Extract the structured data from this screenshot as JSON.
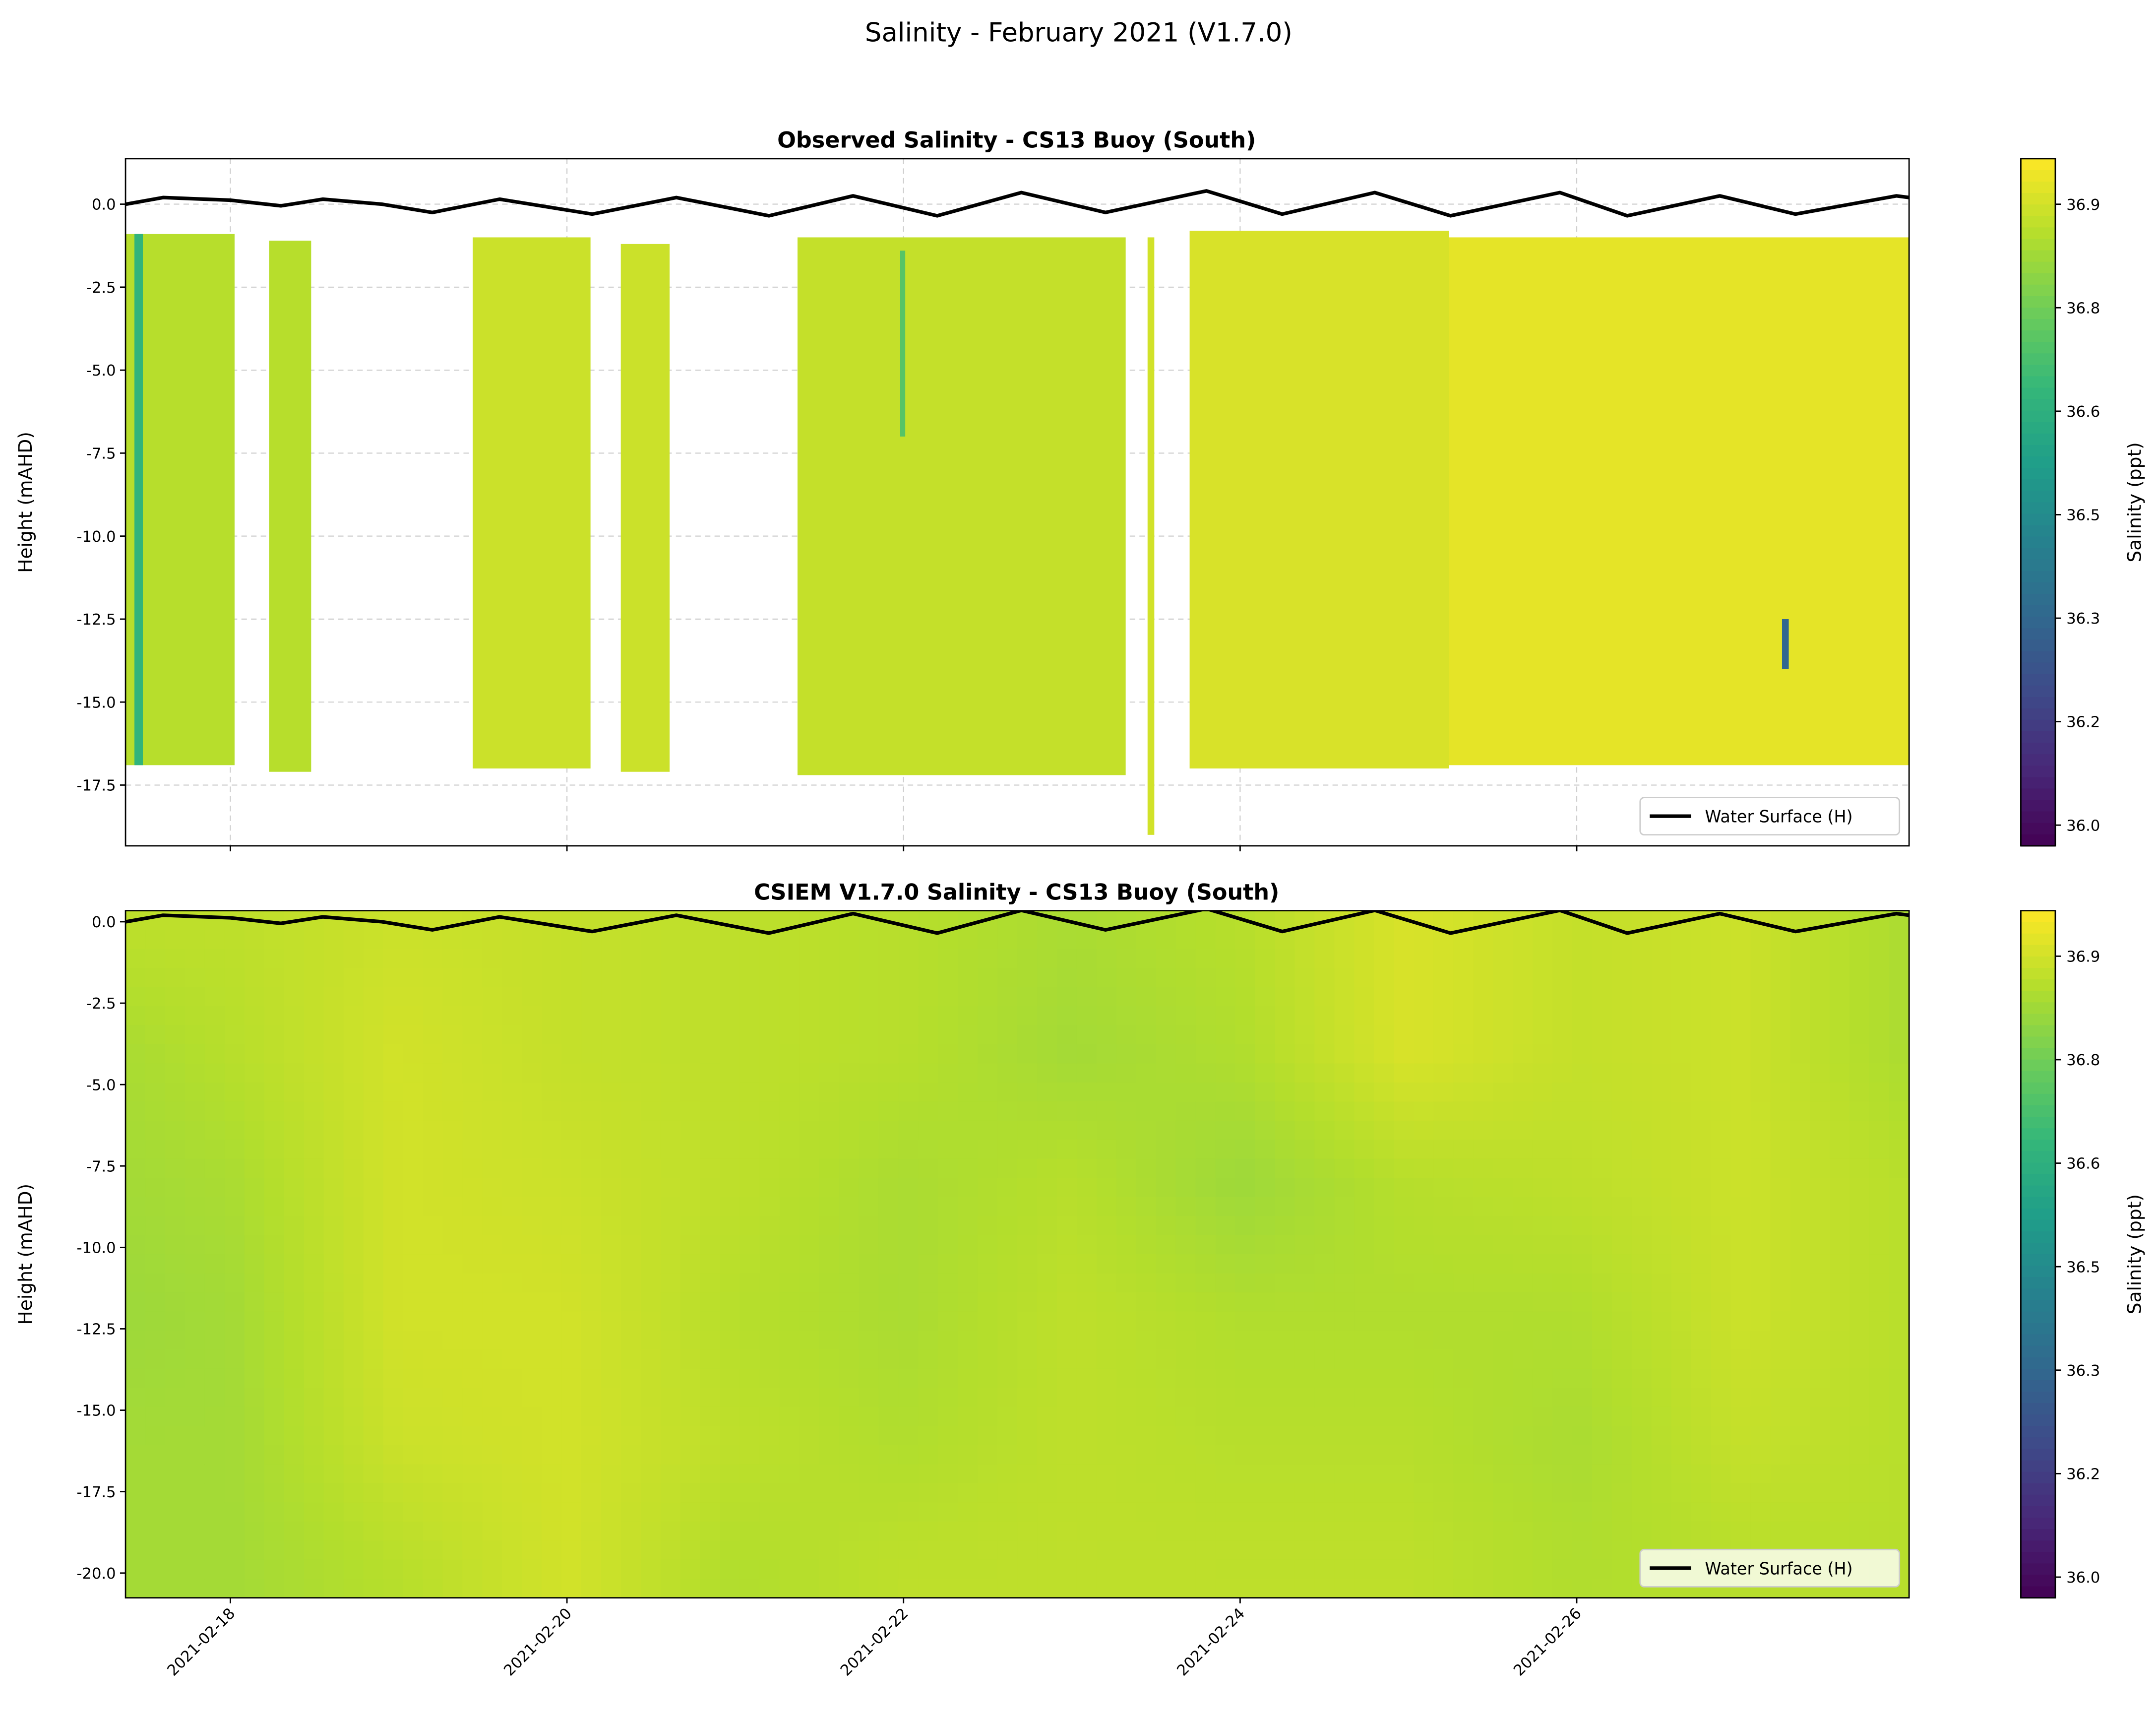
{
  "title": "Salinity - February 2021 (V1.7.0)",
  "colors": {
    "line": "#000000",
    "colormap": "viridis"
  },
  "chart_data": [
    {
      "type": "heatmap",
      "title": "Observed Salinity - CS13 Buoy (South)",
      "xlabel": "",
      "ylabel": "Height (mAHD)",
      "xlim_day_of_feb_2021": [
        17.377,
        27.975
      ],
      "ylim": [
        -19.33,
        1.37
      ],
      "yticks": [
        0.0,
        -2.5,
        -5.0,
        -7.5,
        -10.0,
        -12.5,
        -15.0,
        -17.5
      ],
      "ytick_labels": [
        "0.0",
        "-2.5",
        "-5.0",
        "-7.5",
        "-10.0",
        "-12.5",
        "-15.0",
        "-17.5"
      ],
      "xticks_day": [
        18,
        20,
        22,
        24,
        26
      ],
      "grid": true,
      "legend": {
        "label": "Water Surface (H)",
        "placement": "lower-right"
      },
      "colorbar": {
        "label": "Salinity (ppt)",
        "vmin": 35.97,
        "vmax": 36.966,
        "ticks": [
          36.0,
          36.15,
          36.3,
          36.45,
          36.6,
          36.75,
          36.9
        ],
        "tick_labels": [
          "36.0",
          "36.2",
          "36.3",
          "36.5",
          "36.6",
          "36.8",
          "36.9"
        ]
      },
      "observed_blocks": [
        {
          "start": 17.377,
          "end": 18.025,
          "top": -0.9,
          "bottom": -16.9,
          "value": 36.86
        },
        {
          "start": 17.43,
          "end": 17.48,
          "top": -0.9,
          "bottom": -16.9,
          "value": 36.62
        },
        {
          "start": 18.23,
          "end": 18.48,
          "top": -1.1,
          "bottom": -17.1,
          "value": 36.86
        },
        {
          "start": 19.44,
          "end": 20.14,
          "top": -1.0,
          "bottom": -17.0,
          "value": 36.89
        },
        {
          "start": 20.32,
          "end": 20.61,
          "top": -1.2,
          "bottom": -17.1,
          "value": 36.89
        },
        {
          "start": 21.37,
          "end": 23.32,
          "top": -1.0,
          "bottom": -17.2,
          "value": 36.88
        },
        {
          "start": 21.98,
          "end": 22.01,
          "top": -1.4,
          "bottom": -7.0,
          "value": 36.7
        },
        {
          "start": 23.45,
          "end": 23.49,
          "top": -1.0,
          "bottom": -19.0,
          "value": 36.9
        },
        {
          "start": 23.7,
          "end": 25.24,
          "top": -0.8,
          "bottom": -17.0,
          "value": 36.91
        },
        {
          "start": 25.24,
          "end": 27.975,
          "top": -1.0,
          "bottom": -16.9,
          "value": 36.93
        },
        {
          "start": 27.22,
          "end": 27.26,
          "top": -12.5,
          "bottom": -14.0,
          "value": 36.3
        }
      ],
      "water_surface": {
        "day": [
          17.38,
          17.6,
          18.0,
          18.3,
          18.55,
          18.9,
          19.2,
          19.6,
          20.15,
          20.65,
          21.2,
          21.7,
          22.2,
          22.7,
          23.2,
          23.8,
          24.25,
          24.8,
          25.25,
          25.9,
          26.3,
          26.85,
          27.3,
          27.9,
          27.975
        ],
        "height": [
          0.0,
          0.2,
          0.12,
          -0.05,
          0.15,
          0.0,
          -0.25,
          0.15,
          -0.3,
          0.2,
          -0.35,
          0.25,
          -0.35,
          0.35,
          -0.25,
          0.4,
          -0.3,
          0.35,
          -0.35,
          0.35,
          -0.35,
          0.25,
          -0.3,
          0.25,
          0.2
        ]
      }
    },
    {
      "type": "heatmap",
      "title": "CSIEM V1.7.0 Salinity - CS13 Buoy (South)",
      "xlabel": "",
      "ylabel": "Height (mAHD)",
      "xlim_day_of_feb_2021": [
        17.377,
        27.975
      ],
      "ylim": [
        -20.76,
        0.34
      ],
      "yticks": [
        0.0,
        -2.5,
        -5.0,
        -7.5,
        -10.0,
        -12.5,
        -15.0,
        -17.5,
        -20.0
      ],
      "ytick_labels": [
        "0.0",
        "-2.5",
        "-5.0",
        "-7.5",
        "-10.0",
        "-12.5",
        "-15.0",
        "-17.5",
        "-20.0"
      ],
      "xticks_day": [
        18,
        20,
        22,
        24,
        26
      ],
      "xtick_labels": [
        "2021-02-18",
        "2021-02-20",
        "2021-02-22",
        "2021-02-24",
        "2021-02-26"
      ],
      "grid": false,
      "legend": {
        "label": "Water Surface (H)",
        "placement": "lower-right"
      },
      "colorbar": {
        "label": "Salinity (ppt)",
        "vmin": 35.97,
        "vmax": 36.966,
        "ticks": [
          36.0,
          36.15,
          36.3,
          36.45,
          36.6,
          36.75,
          36.9
        ],
        "tick_labels": [
          "36.0",
          "36.2",
          "36.3",
          "36.5",
          "36.6",
          "36.8",
          "36.9"
        ]
      },
      "model_grid": {
        "days": [
          17.4,
          18,
          19,
          20,
          21,
          22,
          23,
          24,
          25,
          26,
          27,
          28
        ],
        "depths": [
          0,
          -4,
          -8,
          -12,
          -16,
          -20
        ],
        "values": [
          [
            36.87,
            36.84,
            36.83,
            36.82,
            36.83,
            36.83
          ],
          [
            36.87,
            36.86,
            36.84,
            36.83,
            36.83,
            36.83
          ],
          [
            36.89,
            36.9,
            36.9,
            36.9,
            36.89,
            36.86
          ],
          [
            36.88,
            36.88,
            36.89,
            36.9,
            36.9,
            36.9
          ],
          [
            36.87,
            36.87,
            36.87,
            36.86,
            36.87,
            36.85
          ],
          [
            36.86,
            36.86,
            36.84,
            36.84,
            36.85,
            36.87
          ],
          [
            36.84,
            36.83,
            36.86,
            36.87,
            36.87,
            36.87
          ],
          [
            36.86,
            36.85,
            36.82,
            36.85,
            36.86,
            36.87
          ],
          [
            36.91,
            36.91,
            36.86,
            36.85,
            36.86,
            36.87
          ],
          [
            36.88,
            36.88,
            36.87,
            36.85,
            36.84,
            36.85
          ],
          [
            36.89,
            36.89,
            36.89,
            36.89,
            36.88,
            36.86
          ],
          [
            36.84,
            36.84,
            36.86,
            36.86,
            36.86,
            36.86
          ]
        ]
      },
      "water_surface": {
        "day": [
          17.38,
          17.6,
          18.0,
          18.3,
          18.55,
          18.9,
          19.2,
          19.6,
          20.15,
          20.65,
          21.2,
          21.7,
          22.2,
          22.7,
          23.2,
          23.8,
          24.25,
          24.8,
          25.25,
          25.9,
          26.3,
          26.85,
          27.3,
          27.9,
          27.975
        ],
        "height": [
          0.0,
          0.2,
          0.12,
          -0.05,
          0.15,
          0.0,
          -0.25,
          0.15,
          -0.3,
          0.2,
          -0.35,
          0.25,
          -0.35,
          0.35,
          -0.25,
          0.4,
          -0.3,
          0.35,
          -0.35,
          0.35,
          -0.35,
          0.25,
          -0.3,
          0.25,
          0.2
        ]
      }
    }
  ]
}
